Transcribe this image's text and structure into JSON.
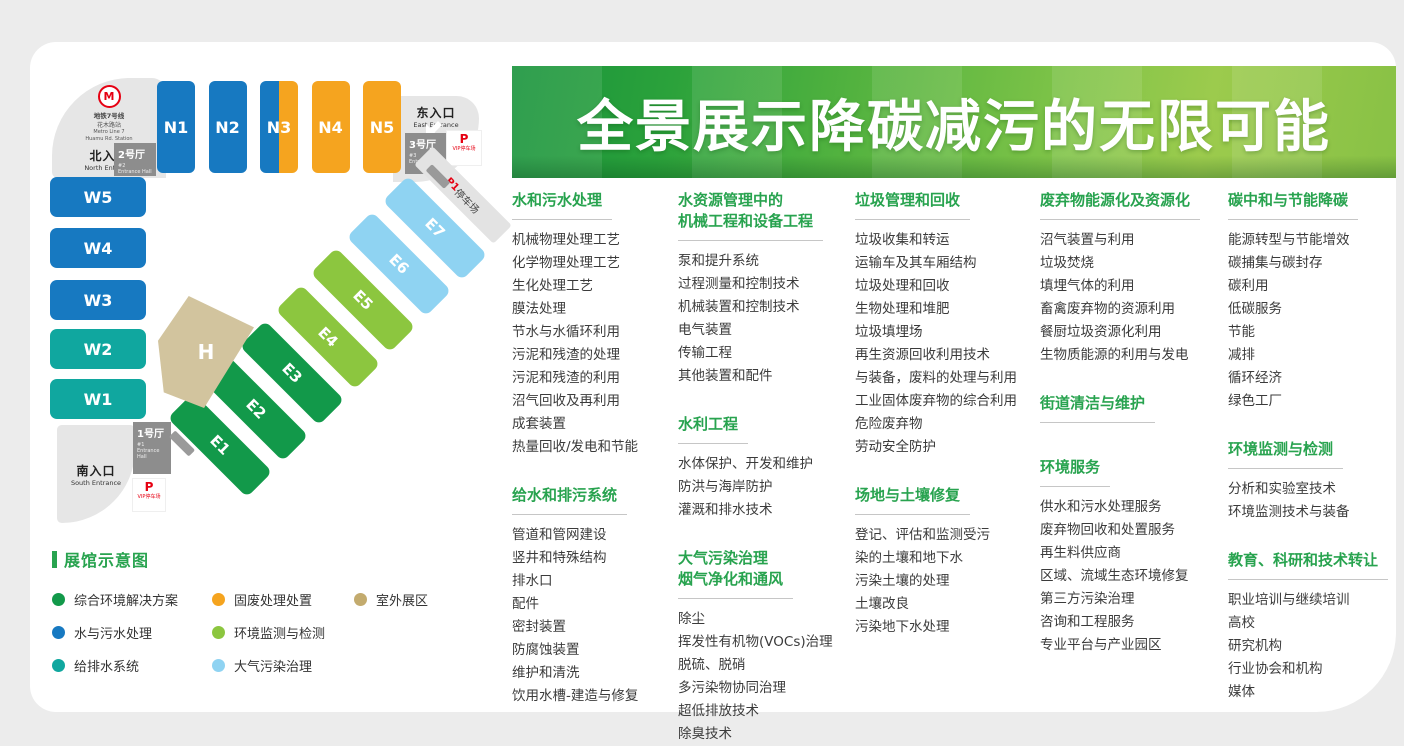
{
  "banner": {
    "title": "全景展示降碳减污的无限可能"
  },
  "map": {
    "metro": {
      "lines": [
        "地铁7号线",
        "花木路站",
        "Metro Line 7",
        "Huamu Rd. Station"
      ],
      "logo_letter": "M"
    },
    "north_entrance": {
      "cn": "北入口",
      "en": "North Entrance"
    },
    "east_entrance": {
      "cn": "东入口",
      "en": "East Entrance"
    },
    "south_entrance": {
      "cn": "南入口",
      "en": "South Entrance"
    },
    "entrance_halls": [
      {
        "cn": "2号厅",
        "num": "#2",
        "en": "Entrance Hall"
      },
      {
        "cn": "3号厅",
        "num": "#3",
        "en": "Entrance Hall"
      },
      {
        "cn": "1号厅",
        "num": "#1",
        "en": "Entrance Hall"
      }
    ],
    "parking": {
      "p": "P",
      "vip": "VIP停车场",
      "p1": "P1",
      "p1_suffix": "停车场"
    },
    "halls": {
      "north_row": [
        {
          "label": "N1",
          "color": "#1779c1"
        },
        {
          "label": "N2",
          "color": "#1779c1"
        },
        {
          "label": "N3",
          "color_left": "#1779c1",
          "color_right": "#f5a41f"
        },
        {
          "label": "N4",
          "color": "#f5a41f"
        },
        {
          "label": "N5",
          "color": "#f5a41f"
        }
      ],
      "west_col": [
        {
          "label": "W5",
          "color": "#1779c1"
        },
        {
          "label": "W4",
          "color": "#1779c1"
        },
        {
          "label": "W3",
          "color": "#1779c1"
        },
        {
          "label": "W2",
          "color": "#10a79f"
        },
        {
          "label": "W1",
          "color": "#10a79f"
        }
      ],
      "east_diag": [
        {
          "label": "E7",
          "color": "#8fd3f2"
        },
        {
          "label": "E6",
          "color": "#8fd3f2"
        },
        {
          "label": "E5",
          "color": "#8cc63f"
        },
        {
          "label": "E4",
          "color": "#8cc63f"
        },
        {
          "label": "E3",
          "color": "#12994a"
        },
        {
          "label": "E2",
          "color": "#12994a"
        },
        {
          "label": "E1",
          "color": "#12994a"
        }
      ],
      "outdoor": {
        "label": "H",
        "color": "#d2c49e"
      }
    },
    "legend": {
      "title": "展馆示意图",
      "items": [
        {
          "label": "综合环境解决方案",
          "color": "#12994a"
        },
        {
          "label": "固废处理处置",
          "color": "#f5a41f"
        },
        {
          "label": "室外展区",
          "color": "#c3ab6e"
        },
        {
          "label": "水与污水处理",
          "color": "#1779c1"
        },
        {
          "label": "环境监测与检测",
          "color": "#8cc63f"
        },
        {
          "label": "给排水系统",
          "color": "#10a79f"
        },
        {
          "label": "大气污染治理",
          "color": "#8fd3f2"
        }
      ]
    }
  },
  "columns": [
    {
      "sections": [
        {
          "heading": [
            "水和污水处理"
          ],
          "items": [
            "机械物理处理工艺",
            "化学物理处理工艺",
            "生化处理工艺",
            "膜法处理",
            "节水与水循环利用",
            "污泥和残渣的处理",
            "污泥和残渣的利用",
            "沼气回收及再利用",
            "成套装置",
            "热量回收/发电和节能"
          ]
        },
        {
          "heading": [
            "给水和排污系统"
          ],
          "items": [
            "管道和管网建设",
            "竖井和特殊结构",
            "排水口",
            "配件",
            "密封装置",
            "防腐蚀装置",
            "维护和清洗",
            "饮用水槽-建造与修复"
          ]
        }
      ]
    },
    {
      "sections": [
        {
          "heading": [
            "水资源管理中的",
            "机械工程和设备工程"
          ],
          "items": [
            "泵和提升系统",
            "过程测量和控制技术",
            "机械装置和控制技术",
            "电气装置",
            "传输工程",
            "其他装置和配件"
          ]
        },
        {
          "heading": [
            "水利工程"
          ],
          "items": [
            "水体保护、开发和维护",
            "防洪与海岸防护",
            "灌溉和排水技术"
          ]
        },
        {
          "heading": [
            "大气污染治理",
            "烟气净化和通风"
          ],
          "items": [
            "除尘",
            "挥发性有机物(VOCs)治理",
            "脱硫、脱硝",
            "多污染物协同治理",
            "超低排放技术",
            "除臭技术"
          ]
        }
      ]
    },
    {
      "sections": [
        {
          "heading": [
            "垃圾管理和回收"
          ],
          "items": [
            "垃圾收集和转运",
            "运输车及其车厢结构",
            "垃圾处理和回收",
            "生物处理和堆肥",
            "垃圾填埋场",
            "再生资源回收利用技术",
            "与装备，废料的处理与利用",
            "工业固体废弃物的综合利用",
            "危险废弃物",
            "劳动安全防护"
          ]
        },
        {
          "heading": [
            "场地与土壤修复"
          ],
          "items": [
            "登记、评估和监测受污",
            "染的土壤和地下水",
            "污染土壤的处理",
            "土壤改良",
            "污染地下水处理"
          ]
        }
      ]
    },
    {
      "sections": [
        {
          "heading": [
            "废弃物能源化及资源化"
          ],
          "items": [
            "沼气装置与利用",
            "垃圾焚烧",
            "填埋气体的利用",
            "畜禽废弃物的资源利用",
            "餐厨垃圾资源化利用",
            "生物质能源的利用与发电"
          ]
        },
        {
          "heading": [
            "街道清洁与维护"
          ],
          "items": []
        },
        {
          "heading": [
            "环境服务"
          ],
          "items": [
            "供水和污水处理服务",
            "废弃物回收和处置服务",
            "再生料供应商",
            "区域、流域生态环境修复",
            "第三方污染治理",
            "咨询和工程服务",
            "专业平台与产业园区"
          ]
        }
      ]
    },
    {
      "sections": [
        {
          "heading": [
            "碳中和与节能降碳"
          ],
          "items": [
            "能源转型与节能增效",
            "碳捕集与碳封存",
            "碳利用",
            "低碳服务",
            "节能",
            "减排",
            "循环经济",
            "绿色工厂"
          ]
        },
        {
          "heading": [
            "环境监测与检测"
          ],
          "items": [
            "分析和实验室技术",
            "环境监测技术与装备"
          ]
        },
        {
          "heading": [
            "教育、科研和技术转让"
          ],
          "items": [
            "职业培训与继续培训",
            "高校",
            "研究机构",
            "行业协会和机构",
            "媒体"
          ]
        }
      ]
    }
  ]
}
